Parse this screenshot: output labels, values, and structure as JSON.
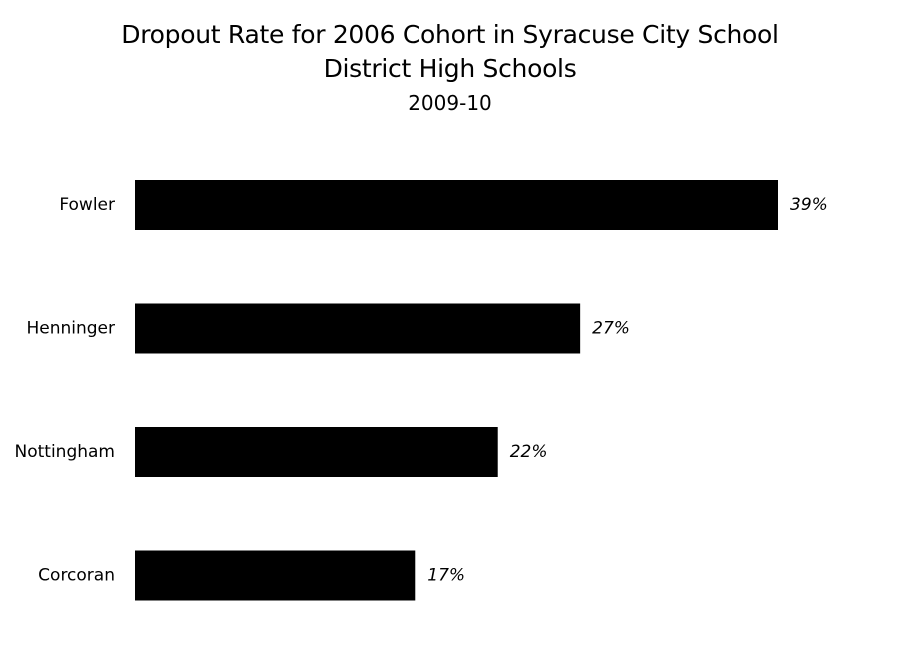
{
  "chart_data": {
    "type": "bar",
    "orientation": "horizontal",
    "title_lines": [
      "Dropout Rate for 2006 Cohort in Syracuse City School",
      "District High Schools"
    ],
    "subtitle": "2009-10",
    "categories": [
      "Fowler",
      "Henninger",
      "Nottingham",
      "Corcoran"
    ],
    "values": [
      39,
      27,
      22,
      17
    ],
    "value_labels": [
      "39%",
      "27%",
      "22%",
      "17%"
    ],
    "xlabel": "",
    "ylabel": "",
    "xlim": [
      0,
      39
    ],
    "grid": false,
    "legend": "none",
    "bar_color": "#000000"
  }
}
